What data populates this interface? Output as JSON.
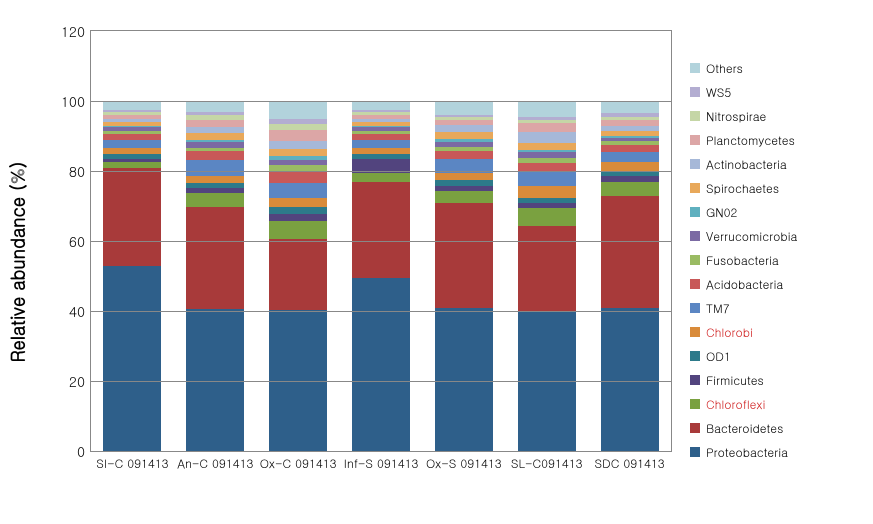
{
  "chart": {
    "type": "stacked-bar",
    "ylabel": "Relative abundance (%)",
    "label_fontsize": 18,
    "tick_fontsize": 14,
    "category_fontsize": 12,
    "legend_fontsize": 12,
    "ylim": [
      0,
      120
    ],
    "ytick_step": 20,
    "yticks": [
      0,
      20,
      40,
      60,
      80,
      100,
      120
    ],
    "background_color": "#ffffff",
    "grid_color": "#888888",
    "border_color": "#888888",
    "bar_width": 0.7,
    "n_categories": 7,
    "categories": [
      "SI-C 091413",
      "An-C 091413",
      "Ox-C 091413",
      "Inf-S 091413",
      "Ox-S 091413",
      "SL-C091413",
      "SDC 091413"
    ],
    "series": [
      {
        "key": "Proteobacteria",
        "label": "Proteobacteria",
        "color": "#2e5f8a",
        "highlight": false
      },
      {
        "key": "Bacteroidetes",
        "label": "Bacteroidetes",
        "color": "#a83a3a",
        "highlight": false
      },
      {
        "key": "Chloroflexi",
        "label": "Chloroflexi",
        "color": "#7aa140",
        "highlight": true
      },
      {
        "key": "Firmicutes",
        "label": "Firmicutes",
        "color": "#52447e",
        "highlight": false
      },
      {
        "key": "OD1",
        "label": "OD1",
        "color": "#2d7a8a",
        "highlight": false
      },
      {
        "key": "Chlorobi",
        "label": "Chlorobi",
        "color": "#d98b3a",
        "highlight": true
      },
      {
        "key": "TM7",
        "label": "TM7",
        "color": "#5b86c3",
        "highlight": false
      },
      {
        "key": "Acidobacteria",
        "label": "Acidobacteria",
        "color": "#c85858",
        "highlight": false
      },
      {
        "key": "Fusobacteria",
        "label": "Fusobacteria",
        "color": "#9abb63",
        "highlight": false
      },
      {
        "key": "Verrucomicrobia",
        "label": "Verrucomicrobia",
        "color": "#7b6aa3",
        "highlight": false
      },
      {
        "key": "GN02",
        "label": "GN02",
        "color": "#5fb0bf",
        "highlight": false
      },
      {
        "key": "Spirochaetes",
        "label": "Spirochaetes",
        "color": "#e8a85a",
        "highlight": false
      },
      {
        "key": "Actinobacteria",
        "label": "Actinobacteria",
        "color": "#a6b8d8",
        "highlight": false
      },
      {
        "key": "Planctomycetes",
        "label": "Planctomycetes",
        "color": "#dca6a6",
        "highlight": false
      },
      {
        "key": "Nitrospirae",
        "label": "Nitrospirae",
        "color": "#c5d6a6",
        "highlight": false
      },
      {
        "key": "WS5",
        "label": "WS5",
        "color": "#b3add1",
        "highlight": false
      },
      {
        "key": "Others",
        "label": "Others",
        "color": "#b2d3dc",
        "highlight": false
      }
    ],
    "values": {
      "Proteobacteria": [
        53.0,
        40.5,
        40.2,
        49.5,
        40.8,
        39.8,
        41.0
      ],
      "Bacteroidetes": [
        28.0,
        29.2,
        20.5,
        27.5,
        30.0,
        24.5,
        32.0
      ],
      "Chloroflexi": [
        1.5,
        4.0,
        5.0,
        2.5,
        3.5,
        5.0,
        4.0
      ],
      "Firmicutes": [
        1.0,
        1.5,
        2.0,
        4.0,
        1.5,
        1.5,
        1.5
      ],
      "OD1": [
        1.5,
        1.5,
        2.0,
        1.5,
        1.5,
        1.5,
        1.5
      ],
      "Chlorobi": [
        1.5,
        2.0,
        2.5,
        1.5,
        2.0,
        3.5,
        2.5
      ],
      "TM7": [
        2.5,
        4.5,
        4.5,
        2.5,
        4.0,
        4.0,
        3.0
      ],
      "Acidobacteria": [
        1.5,
        2.5,
        3.0,
        1.5,
        2.5,
        2.5,
        2.0
      ],
      "Fusobacteria": [
        1.0,
        1.0,
        2.0,
        1.0,
        1.0,
        1.5,
        1.0
      ],
      "Verrucomicrobia": [
        1.0,
        1.5,
        1.5,
        1.0,
        1.5,
        1.5,
        1.0
      ],
      "GN02": [
        0.5,
        0.8,
        1.0,
        0.5,
        0.8,
        0.8,
        0.5
      ],
      "Spirochaetes": [
        1.0,
        2.0,
        2.0,
        1.0,
        2.0,
        2.0,
        1.5
      ],
      "Actinobacteria": [
        1.0,
        1.5,
        2.5,
        1.0,
        2.0,
        3.0,
        1.5
      ],
      "Planctomycetes": [
        1.0,
        2.0,
        3.0,
        1.0,
        1.5,
        2.5,
        1.5
      ],
      "Nitrospirae": [
        0.8,
        1.5,
        1.8,
        0.8,
        0.7,
        1.0,
        1.0
      ],
      "WS5": [
        0.7,
        1.0,
        1.5,
        0.7,
        0.7,
        0.9,
        1.0
      ],
      "Others": [
        2.5,
        3.0,
        5.0,
        2.5,
        4.0,
        4.5,
        3.5
      ]
    },
    "legend_highlight_color": "#d02020",
    "legend_text_color": "#000000"
  }
}
